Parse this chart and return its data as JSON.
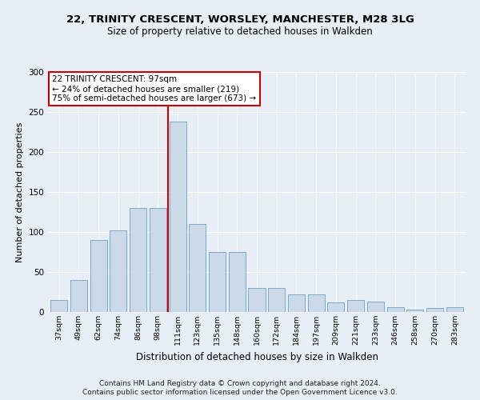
{
  "title1": "22, TRINITY CRESCENT, WORSLEY, MANCHESTER, M28 3LG",
  "title2": "Size of property relative to detached houses in Walkden",
  "xlabel": "Distribution of detached houses by size in Walkden",
  "ylabel": "Number of detached properties",
  "footnote1": "Contains HM Land Registry data © Crown copyright and database right 2024.",
  "footnote2": "Contains public sector information licensed under the Open Government Licence v3.0.",
  "annotation_line1": "22 TRINITY CRESCENT: 97sqm",
  "annotation_line2": "← 24% of detached houses are smaller (219)",
  "annotation_line3": "75% of semi-detached houses are larger (673) →",
  "categories": [
    "37sqm",
    "49sqm",
    "62sqm",
    "74sqm",
    "86sqm",
    "98sqm",
    "111sqm",
    "123sqm",
    "135sqm",
    "148sqm",
    "160sqm",
    "172sqm",
    "184sqm",
    "197sqm",
    "209sqm",
    "221sqm",
    "233sqm",
    "246sqm",
    "258sqm",
    "270sqm",
    "283sqm"
  ],
  "values": [
    15,
    40,
    90,
    102,
    130,
    130,
    238,
    110,
    75,
    75,
    30,
    30,
    22,
    22,
    12,
    15,
    13,
    6,
    3,
    5,
    6
  ],
  "bar_color": "#ccd9e8",
  "bar_edge_color": "#7aaac8",
  "vline_color": "#cc0000",
  "vline_x": 5.5,
  "ylim": [
    0,
    300
  ],
  "yticks": [
    0,
    50,
    100,
    150,
    200,
    250,
    300
  ],
  "bg_color": "#e8eef5",
  "plot_bg_color": "#e8eef5",
  "grid_color": "#ffffff",
  "title1_fontsize": 9.5,
  "title2_fontsize": 8.5,
  "ylabel_fontsize": 8,
  "xlabel_fontsize": 8.5,
  "footnote_fontsize": 6.5,
  "annot_fontsize": 7.5
}
